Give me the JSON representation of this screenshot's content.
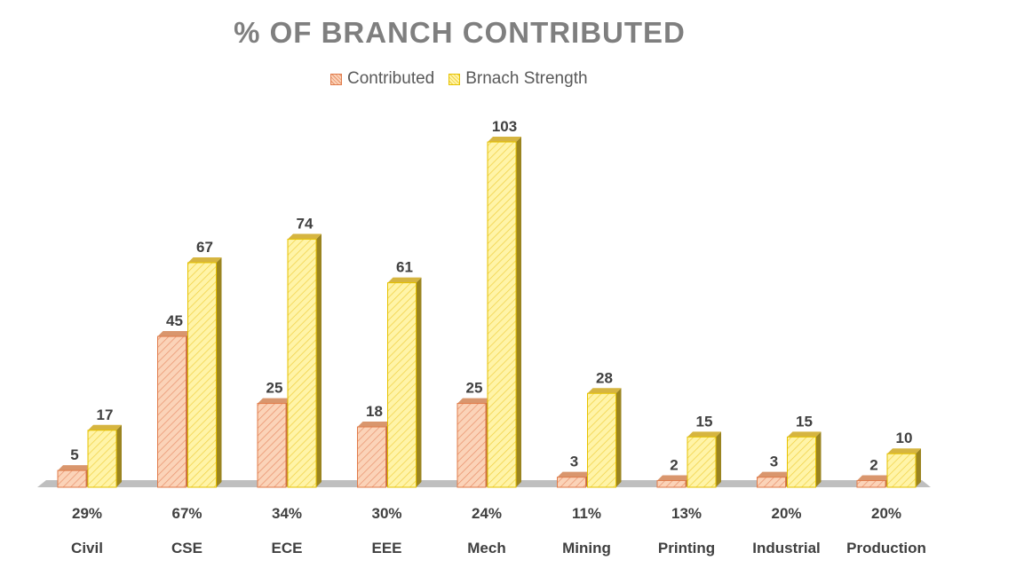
{
  "chart_data": {
    "type": "bar",
    "title": "% OF BRANCH CONTRIBUTED",
    "categories": [
      "Civil",
      "CSE",
      "ECE",
      "EEE",
      "Mech",
      "Mining",
      "Printing",
      "Industrial",
      "Production"
    ],
    "percent_labels": [
      "29%",
      "67%",
      "34%",
      "30%",
      "24%",
      "11%",
      "13%",
      "20%",
      "20%"
    ],
    "series": [
      {
        "name": "Contributed",
        "values": [
          5,
          45,
          25,
          18,
          25,
          3,
          2,
          3,
          2
        ],
        "color": "#f4b183",
        "edge": "#e07b4a"
      },
      {
        "name": "Brnach Strength",
        "values": [
          17,
          67,
          74,
          61,
          103,
          28,
          15,
          15,
          10
        ],
        "color": "#ffe680",
        "edge": "#e6c200"
      }
    ],
    "ylim": [
      0,
      110
    ],
    "legend_position": "top",
    "grid": false,
    "style": "3d-column"
  }
}
